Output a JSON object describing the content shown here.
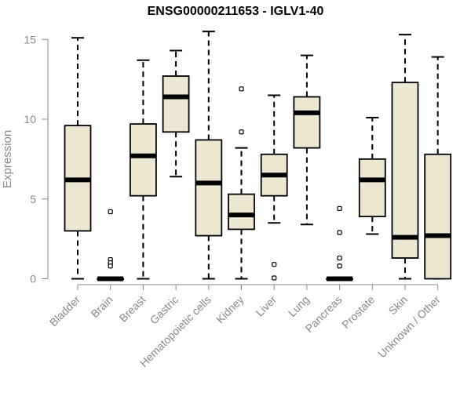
{
  "chart_data": {
    "type": "boxplot",
    "title": "ENSG00000211653 - IGLV1-40",
    "xlabel": "",
    "ylabel": "Expression",
    "ylim": [
      0,
      15.5
    ],
    "yticks": [
      0,
      5,
      10,
      15
    ],
    "box_fill": "#ede6d0",
    "categories": [
      "Bladder",
      "Brain",
      "Breast",
      "Gastric",
      "Hematopoietic cells",
      "Kidney",
      "Liver",
      "Lung",
      "Pancreas",
      "Prostate",
      "Skin",
      "Unknown / Other"
    ],
    "boxes": [
      {
        "whisker_low": 0,
        "q1": 3.0,
        "median": 6.2,
        "q3": 9.6,
        "whisker_high": 15.1,
        "outliers": []
      },
      {
        "whisker_low": 0,
        "q1": 0,
        "median": 0,
        "q3": 0,
        "whisker_high": 0,
        "outliers": [
          4.2,
          1.2,
          1.0,
          0.8
        ]
      },
      {
        "whisker_low": 0,
        "q1": 5.2,
        "median": 7.7,
        "q3": 9.7,
        "whisker_high": 13.7,
        "outliers": []
      },
      {
        "whisker_low": 6.4,
        "q1": 9.2,
        "median": 11.4,
        "q3": 12.7,
        "whisker_high": 14.3,
        "outliers": []
      },
      {
        "whisker_low": 0,
        "q1": 2.7,
        "median": 6.0,
        "q3": 8.7,
        "whisker_high": 15.5,
        "outliers": []
      },
      {
        "whisker_low": 0,
        "q1": 3.1,
        "median": 4.0,
        "q3": 5.3,
        "whisker_high": 8.2,
        "outliers": [
          9.2,
          11.9
        ]
      },
      {
        "whisker_low": 3.5,
        "q1": 5.2,
        "median": 6.5,
        "q3": 7.8,
        "whisker_high": 11.5,
        "outliers": [
          0.9,
          0.05
        ]
      },
      {
        "whisker_low": 3.4,
        "q1": 8.2,
        "median": 10.4,
        "q3": 11.4,
        "whisker_high": 14.0,
        "outliers": []
      },
      {
        "whisker_low": 0,
        "q1": 0,
        "median": 0,
        "q3": 0,
        "whisker_high": 0,
        "outliers": [
          4.4,
          2.9,
          1.3,
          0.8
        ]
      },
      {
        "whisker_low": 2.8,
        "q1": 3.9,
        "median": 6.2,
        "q3": 7.5,
        "whisker_high": 10.1,
        "outliers": []
      },
      {
        "whisker_low": 0,
        "q1": 1.3,
        "median": 2.6,
        "q3": 12.3,
        "whisker_high": 15.3,
        "outliers": []
      },
      {
        "whisker_low": 0,
        "q1": 0,
        "median": 2.7,
        "q3": 7.8,
        "whisker_high": 13.9,
        "outliers": []
      }
    ]
  }
}
